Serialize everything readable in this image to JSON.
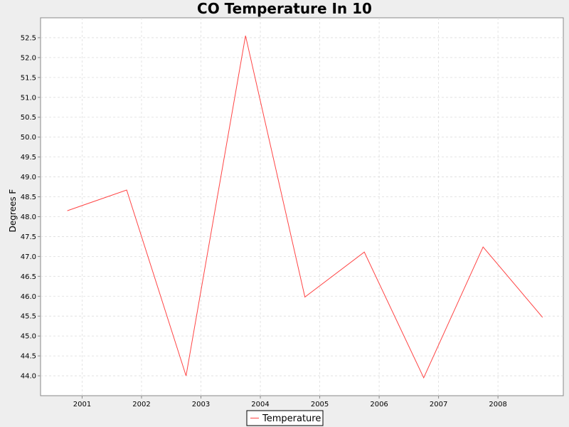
{
  "chart_data": {
    "type": "line",
    "title": "CO Temperature In 10",
    "xlabel": "",
    "ylabel": "Degrees F",
    "x_tick_labels": [
      "2001",
      "2002",
      "2003",
      "2004",
      "2005",
      "2006",
      "2007",
      "2008"
    ],
    "y_tick_labels": [
      "44.0",
      "44.5",
      "45.0",
      "45.5",
      "46.0",
      "46.5",
      "47.0",
      "47.5",
      "48.0",
      "48.5",
      "49.0",
      "49.5",
      "50.0",
      "50.5",
      "51.0",
      "51.5",
      "52.0",
      "52.5"
    ],
    "xlim": [
      2000.3,
      2009.1
    ],
    "ylim": [
      43.5,
      53.0
    ],
    "grid": true,
    "legend_position": "bottom-center",
    "series": [
      {
        "name": "Temperature",
        "color": "#ff4444",
        "x": [
          2000.75,
          2001.75,
          2002.75,
          2003.75,
          2004.75,
          2005.75,
          2006.75,
          2007.75,
          2008.75
        ],
        "y": [
          48.15,
          48.67,
          44.0,
          52.55,
          45.98,
          47.11,
          43.95,
          47.24,
          45.47
        ]
      }
    ]
  }
}
